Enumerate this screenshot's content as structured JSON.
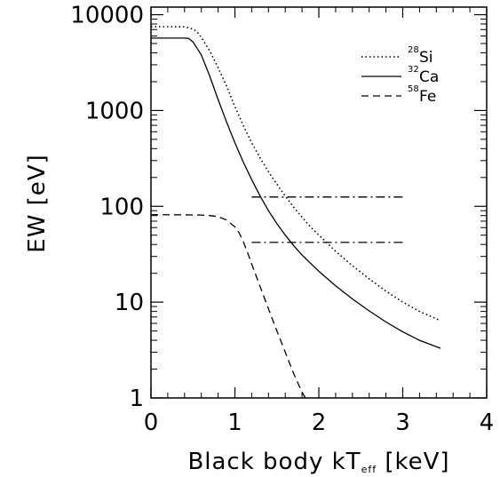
{
  "chart_data": {
    "type": "line",
    "title": "",
    "xlabel": "Black body kT",
    "xlabel_sub": "eff",
    "xlabel_unit": " [keV]",
    "ylabel": "EW  [eV]",
    "xlim": [
      0,
      4
    ],
    "ylim": [
      1,
      12000
    ],
    "yscale": "log",
    "x_ticks": [
      0,
      1,
      2,
      3,
      4
    ],
    "x_tick_labels": [
      "0",
      "1",
      "2",
      "3",
      "4"
    ],
    "y_ticks": [
      1,
      10,
      100,
      1000,
      10000
    ],
    "y_tick_labels": [
      "1",
      "10",
      "100",
      "1000",
      "10000"
    ],
    "grid": false,
    "legend_position": "top-right",
    "series": [
      {
        "name_mass": "28",
        "name_element": "Si",
        "style": "dotted",
        "x": [
          0.0,
          0.3,
          0.4,
          0.5,
          0.55,
          0.6,
          0.7,
          0.8,
          0.9,
          1.0,
          1.1,
          1.2,
          1.3,
          1.4,
          1.5,
          1.6,
          1.7,
          1.8,
          1.9,
          2.0,
          2.2,
          2.4,
          2.6,
          2.8,
          3.0,
          3.2,
          3.45
        ],
        "y": [
          7500,
          7500,
          7450,
          7100,
          6600,
          5800,
          4200,
          2800,
          1800,
          1100,
          700,
          460,
          320,
          230,
          170,
          128,
          98,
          77,
          61,
          50,
          34,
          24,
          17.5,
          13,
          10,
          8,
          6.4
        ]
      },
      {
        "name_mass": "32",
        "name_element": "Ca",
        "style": "solid",
        "x": [
          0.0,
          0.4,
          0.45,
          0.5,
          0.6,
          0.7,
          0.8,
          0.9,
          1.0,
          1.1,
          1.2,
          1.3,
          1.4,
          1.5,
          1.6,
          1.7,
          1.8,
          1.9,
          2.0,
          2.2,
          2.4,
          2.6,
          2.8,
          3.0,
          3.2,
          3.45
        ],
        "y": [
          5700,
          5700,
          5650,
          5200,
          3800,
          2300,
          1300,
          760,
          460,
          290,
          190,
          128,
          90,
          66,
          50,
          39,
          31,
          25.5,
          21,
          14.8,
          10.8,
          8.1,
          6.2,
          4.9,
          4.0,
          3.3
        ]
      },
      {
        "name_mass": "58",
        "name_element": "Fe",
        "style": "dashed",
        "x": [
          0.0,
          0.6,
          0.7,
          0.8,
          0.9,
          1.0,
          1.05,
          1.1,
          1.15,
          1.2,
          1.3,
          1.4,
          1.5,
          1.6,
          1.7,
          1.8,
          1.84
        ],
        "y": [
          82,
          81,
          80,
          78,
          72,
          61,
          53,
          43,
          33,
          25,
          14.5,
          8.5,
          5,
          3,
          1.8,
          1.15,
          1.0
        ]
      }
    ],
    "reference_lines": [
      {
        "style": "dash-dot",
        "x": [
          1.2,
          3.0
        ],
        "y": 125
      },
      {
        "style": "dash-dot",
        "x": [
          1.2,
          3.0
        ],
        "y": 42
      }
    ]
  }
}
